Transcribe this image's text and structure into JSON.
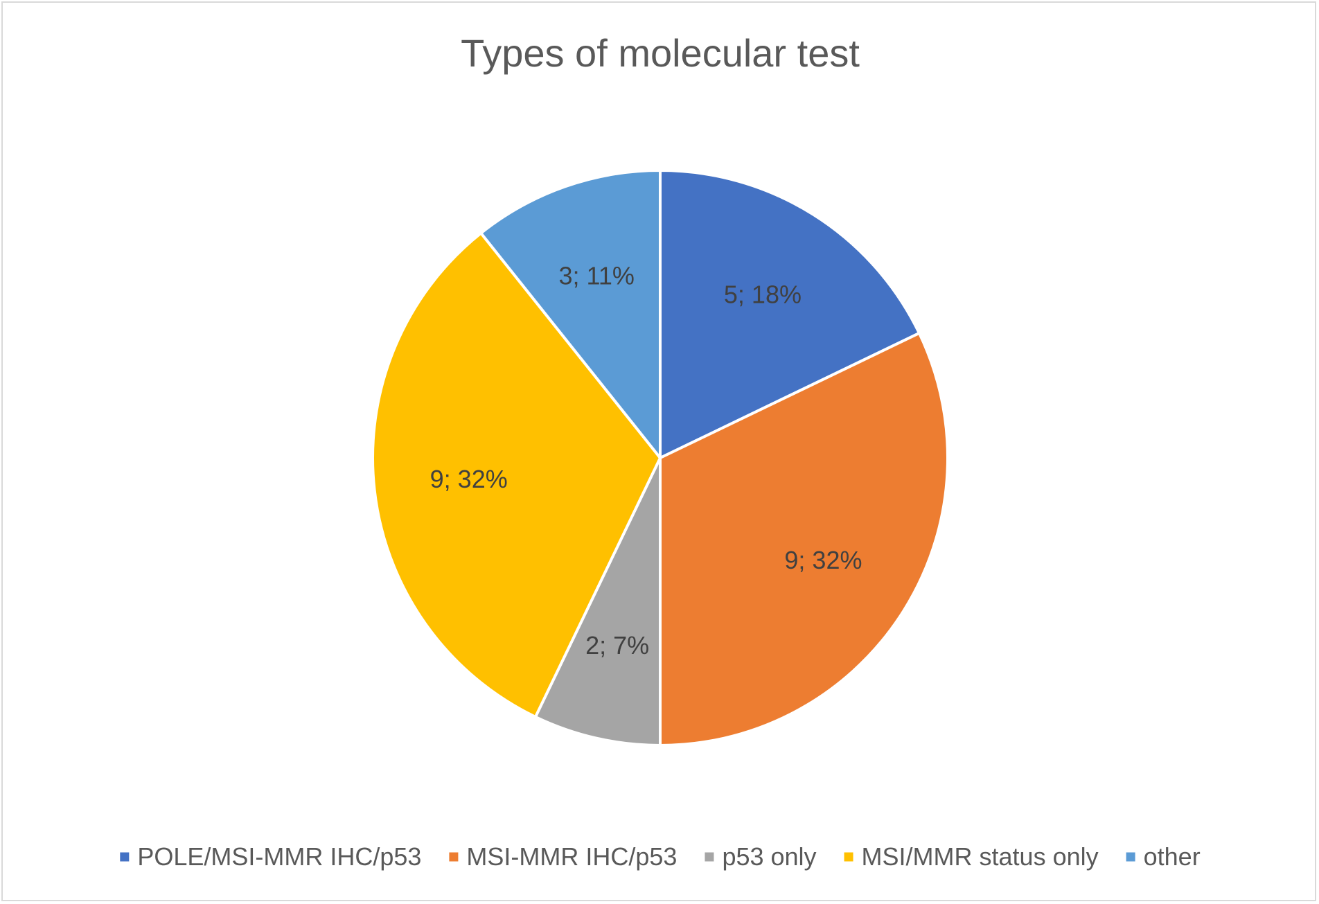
{
  "chart_data": {
    "type": "pie",
    "title": "Types of molecular test",
    "start_angle_deg": 0,
    "direction": "clockwise",
    "slices": [
      {
        "name": "POLE/MSI-MMR IHC/p53",
        "value": 5,
        "percent": 18,
        "label": "5; 18%",
        "color": "#4472C4"
      },
      {
        "name": "MSI-MMR IHC/p53",
        "value": 9,
        "percent": 32,
        "label": "9; 32%",
        "color": "#ED7D31"
      },
      {
        "name": "p53 only",
        "value": 2,
        "percent": 7,
        "label": "2; 7%",
        "color": "#A5A5A5"
      },
      {
        "name": "MSI/MMR status only",
        "value": 9,
        "percent": 32,
        "label": "9; 32%",
        "color": "#FFC000"
      },
      {
        "name": "other",
        "value": 3,
        "percent": 11,
        "label": "3; 11%",
        "color": "#5B9BD5"
      }
    ],
    "legend_position": "bottom",
    "slice_border_color": "#ffffff"
  }
}
